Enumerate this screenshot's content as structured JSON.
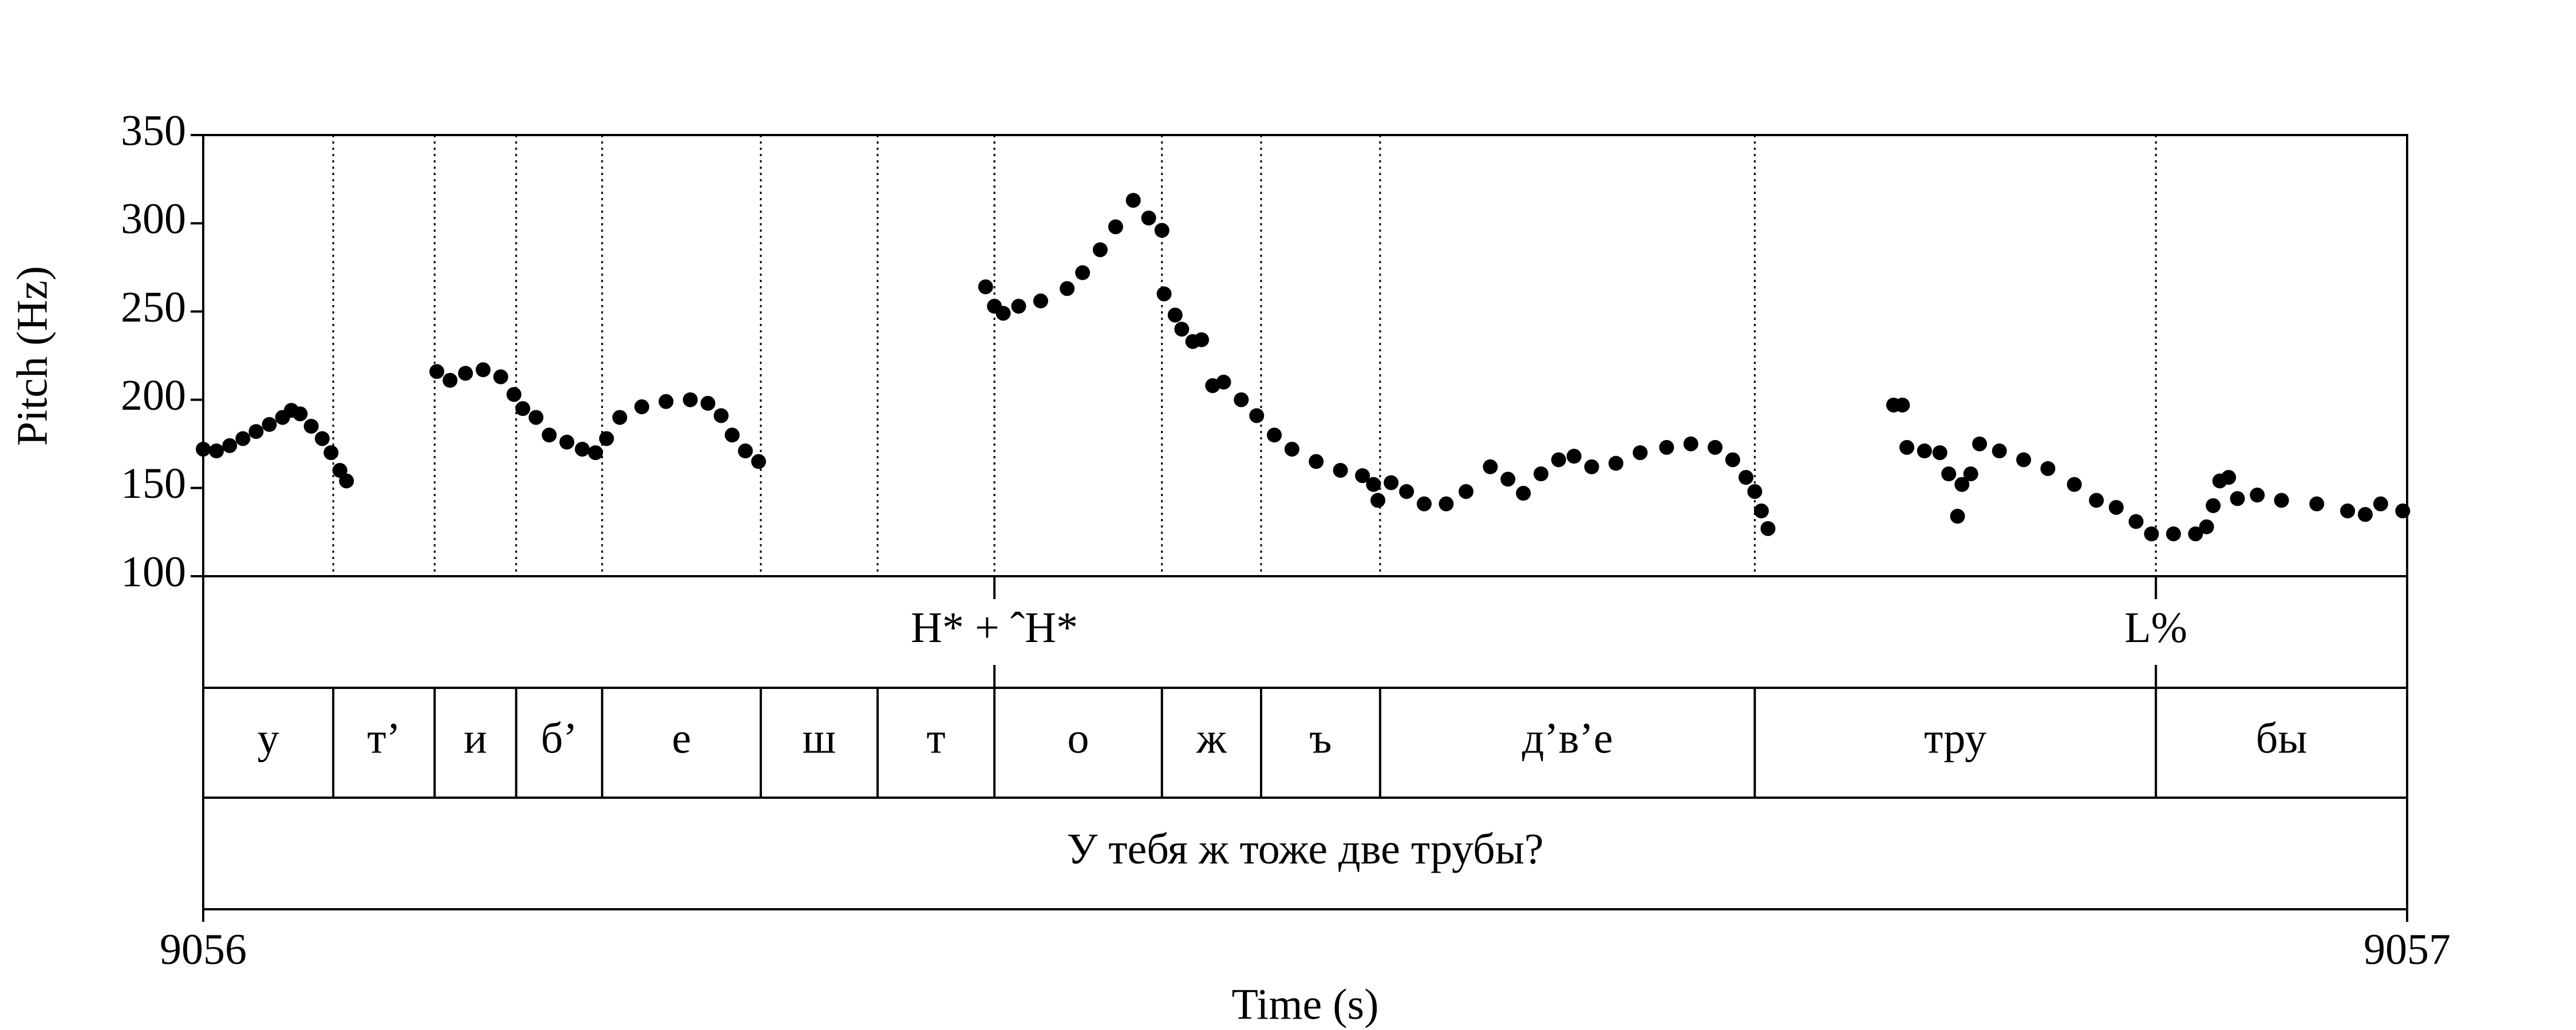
{
  "chart_data": {
    "type": "scatter",
    "y_label": "Pitch (Hz)",
    "x_label": "Time (s)",
    "color": "#000000",
    "xlim": [
      9056,
      9057
    ],
    "xticks": [
      9056,
      9057
    ],
    "ylim": [
      100,
      350
    ],
    "yticks": [
      100,
      150,
      200,
      250,
      300,
      350
    ],
    "x": [
      9056.0,
      9056.006,
      9056.012,
      9056.018,
      9056.024,
      9056.03,
      9056.036,
      9056.04,
      9056.044,
      9056.049,
      9056.054,
      9056.058,
      9056.062,
      9056.065,
      9056.106,
      9056.112,
      9056.119,
      9056.127,
      9056.135,
      9056.141,
      9056.145,
      9056.151,
      9056.157,
      9056.165,
      9056.172,
      9056.178,
      9056.183,
      9056.189,
      9056.199,
      9056.21,
      9056.221,
      9056.229,
      9056.235,
      9056.24,
      9056.246,
      9056.252,
      9056.355,
      9056.359,
      9056.363,
      9056.37,
      9056.38,
      9056.392,
      9056.399,
      9056.407,
      9056.414,
      9056.422,
      9056.429,
      9056.435,
      9056.436,
      9056.441,
      9056.444,
      9056.449,
      9056.453,
      9056.458,
      9056.463,
      9056.471,
      9056.478,
      9056.486,
      9056.494,
      9056.505,
      9056.516,
      9056.526,
      9056.531,
      9056.533,
      9056.539,
      9056.546,
      9056.554,
      9056.564,
      9056.573,
      9056.584,
      9056.592,
      9056.599,
      9056.607,
      9056.615,
      9056.622,
      9056.63,
      9056.641,
      9056.652,
      9056.664,
      9056.675,
      9056.686,
      9056.694,
      9056.7,
      9056.704,
      9056.707,
      9056.71,
      9056.767,
      9056.771,
      9056.773,
      9056.781,
      9056.788,
      9056.792,
      9056.796,
      9056.798,
      9056.802,
      9056.806,
      9056.815,
      9056.826,
      9056.837,
      9056.849,
      9056.859,
      9056.868,
      9056.877,
      9056.884,
      9056.894,
      9056.904,
      9056.909,
      9056.912,
      9056.915,
      9056.919,
      9056.923,
      9056.932,
      9056.943,
      9056.959,
      9056.973,
      9056.981,
      9056.988,
      9056.998
    ],
    "values": [
      172,
      171,
      174,
      178,
      182,
      186,
      190,
      194,
      192,
      185,
      178,
      170,
      160,
      154,
      216,
      211,
      215,
      217,
      213,
      203,
      195,
      190,
      180,
      176,
      172,
      170,
      178,
      190,
      196,
      199,
      200,
      198,
      191,
      180,
      171,
      165,
      264,
      253,
      249,
      253,
      256,
      263,
      272,
      285,
      298,
      313,
      303,
      296,
      260,
      248,
      240,
      233,
      234,
      208,
      210,
      200,
      191,
      180,
      172,
      165,
      160,
      157,
      152,
      143,
      153,
      148,
      141,
      141,
      148,
      162,
      155,
      147,
      158,
      166,
      168,
      162,
      164,
      170,
      173,
      175,
      173,
      166,
      156,
      148,
      137,
      127,
      197,
      197,
      173,
      171,
      170,
      158,
      134,
      152,
      158,
      175,
      171,
      166,
      161,
      152,
      143,
      139,
      131,
      124,
      124,
      124,
      128,
      140,
      154,
      156,
      144,
      146,
      143,
      141,
      137,
      135,
      141,
      137
    ],
    "tiers": [
      {
        "points": [
          {
            "time": 9056.359,
            "label": "H* + ˆH*"
          },
          {
            "time": 9056.886,
            "label": "L%"
          }
        ]
      },
      {
        "boundaries": [
          9056.059,
          9056.105,
          9056.142,
          9056.181,
          9056.253,
          9056.306,
          9056.359,
          9056.435,
          9056.48,
          9056.534,
          9056.704,
          9056.886
        ],
        "labels": [
          "у",
          "т’",
          "и",
          "б’",
          "е",
          "ш",
          "т",
          "о",
          "ж",
          "ъ",
          "д’в’е",
          "тру",
          "бы"
        ]
      },
      {
        "labels": [
          "У тебя ж тоже две трубы?"
        ]
      }
    ]
  }
}
